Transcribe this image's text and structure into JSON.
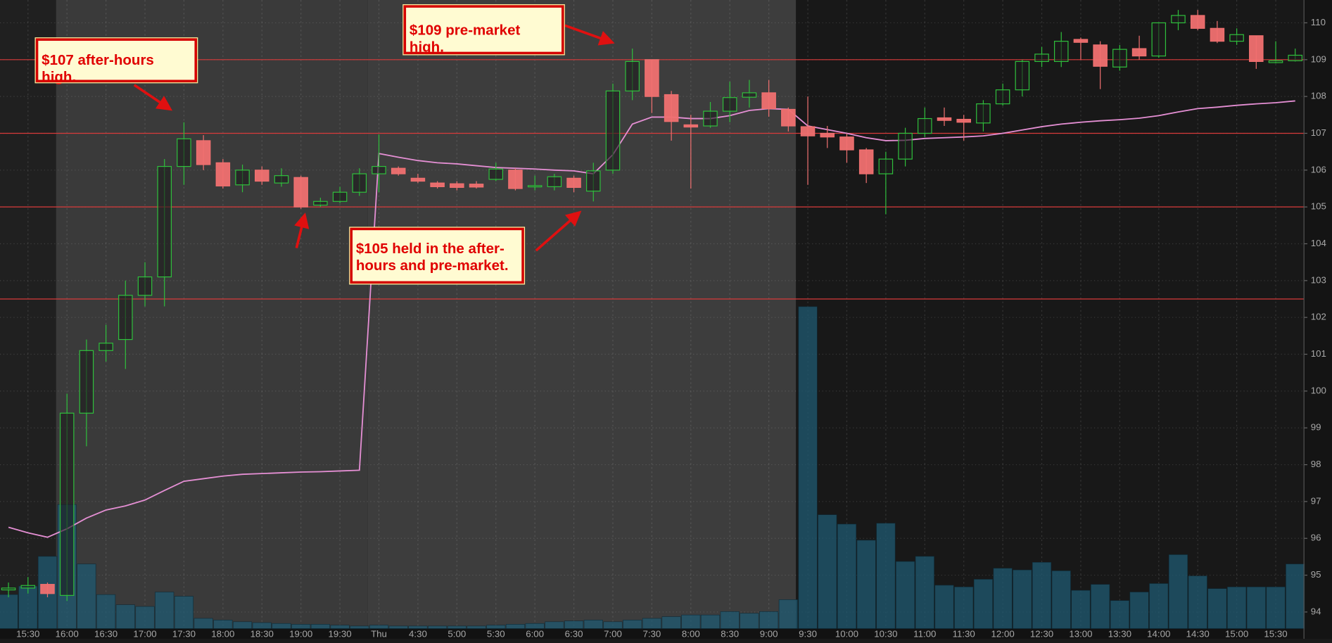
{
  "chart_data": {
    "type": "candlestick",
    "categories": [
      null,
      "15:30",
      null,
      "16:00",
      null,
      "16:30",
      null,
      "17:00",
      null,
      "17:30",
      null,
      "18:00",
      null,
      "18:30",
      null,
      "19:00",
      null,
      "19:30",
      null,
      "Thu",
      null,
      "4:30",
      null,
      "5:00",
      null,
      "5:30",
      null,
      "6:00",
      null,
      "6:30",
      null,
      "7:00",
      null,
      "7:30",
      null,
      "8:00",
      null,
      "8:30",
      null,
      "9:00",
      null,
      "9:30",
      null,
      "10:00",
      null,
      "10:30",
      null,
      "11:00",
      null,
      "11:30",
      null,
      "12:00",
      null,
      "12:30",
      null,
      "13:00",
      null,
      "13:30",
      null,
      "14:00",
      null,
      "14:30",
      null,
      "15:00",
      null,
      "15:30",
      null
    ],
    "open": [
      94.6,
      94.65,
      94.75,
      94.45,
      99.4,
      101.1,
      101.4,
      102.6,
      103.1,
      106.1,
      106.8,
      106.2,
      105.6,
      106.0,
      105.65,
      105.8,
      105.05,
      105.15,
      105.4,
      105.9,
      106.05,
      105.78,
      105.65,
      105.63,
      105.62,
      105.75,
      106.0,
      105.55,
      105.55,
      105.78,
      105.43,
      106.0,
      108.15,
      109.0,
      108.05,
      107.23,
      107.2,
      107.6,
      107.98,
      108.1,
      107.65,
      107.18,
      107.0,
      106.9,
      106.55,
      105.9,
      106.3,
      107.0,
      107.42,
      107.38,
      107.28,
      107.8,
      108.18,
      108.95,
      108.95,
      109.55,
      109.4,
      108.8,
      109.3,
      109.1,
      110.0,
      110.2,
      109.85,
      109.5,
      109.65,
      108.92,
      108.97
    ],
    "high": [
      94.8,
      94.95,
      94.8,
      99.93,
      101.4,
      101.8,
      103.0,
      103.5,
      106.3,
      107.3,
      106.95,
      106.3,
      106.15,
      106.1,
      106.05,
      105.85,
      105.25,
      105.55,
      106.05,
      106.97,
      106.1,
      105.9,
      105.7,
      105.7,
      105.7,
      106.2,
      106.05,
      105.85,
      105.9,
      105.85,
      106.2,
      108.35,
      109.3,
      109.0,
      108.15,
      107.5,
      107.85,
      108.4,
      108.45,
      108.45,
      107.7,
      108.0,
      107.2,
      107.0,
      106.6,
      106.5,
      107.15,
      107.7,
      107.7,
      107.5,
      107.9,
      108.35,
      109.0,
      109.35,
      109.75,
      109.6,
      109.5,
      109.4,
      109.65,
      110.0,
      110.35,
      110.35,
      110.05,
      109.85,
      109.65,
      109.5,
      109.3
    ],
    "low": [
      94.4,
      94.5,
      94.4,
      94.3,
      98.5,
      100.8,
      100.6,
      102.3,
      102.3,
      105.6,
      106.0,
      105.5,
      105.4,
      105.6,
      105.55,
      104.95,
      105.0,
      105.1,
      105.3,
      105.4,
      105.85,
      105.65,
      105.5,
      105.45,
      105.5,
      105.7,
      105.45,
      105.45,
      105.45,
      105.4,
      105.15,
      105.9,
      107.9,
      107.55,
      106.8,
      105.5,
      107.15,
      107.3,
      107.7,
      107.45,
      107.05,
      105.6,
      106.6,
      106.2,
      105.65,
      104.8,
      106.1,
      106.9,
      107.2,
      106.8,
      107.05,
      107.75,
      108.0,
      108.8,
      108.8,
      109.0,
      108.2,
      108.7,
      109.0,
      109.05,
      109.8,
      109.8,
      109.45,
      109.4,
      108.75,
      108.9,
      108.95
    ],
    "close": [
      94.65,
      94.72,
      94.5,
      99.4,
      101.1,
      101.3,
      102.6,
      103.1,
      106.1,
      106.85,
      106.15,
      105.57,
      106.0,
      105.7,
      105.85,
      105.0,
      105.15,
      105.4,
      105.9,
      106.1,
      105.9,
      105.7,
      105.55,
      105.53,
      105.54,
      106.03,
      105.5,
      105.58,
      105.82,
      105.53,
      105.98,
      108.15,
      108.95,
      108.0,
      107.32,
      107.17,
      107.6,
      107.97,
      108.1,
      107.67,
      107.2,
      106.93,
      106.9,
      106.55,
      105.9,
      106.3,
      107.0,
      107.4,
      107.35,
      107.3,
      107.8,
      108.18,
      108.95,
      109.15,
      109.5,
      109.47,
      108.82,
      109.28,
      109.1,
      110.0,
      110.2,
      109.85,
      109.5,
      109.68,
      108.95,
      108.97,
      109.12
    ],
    "volume": [
      40,
      50,
      85,
      146,
      76,
      40,
      28,
      26,
      43,
      38,
      12,
      10,
      8,
      7,
      6,
      5,
      5,
      4,
      3,
      4,
      3,
      3,
      3,
      3,
      3,
      4,
      5,
      6,
      8,
      9,
      10,
      8,
      10,
      12,
      14,
      16,
      16,
      20,
      18,
      20,
      34,
      379,
      134,
      123,
      104,
      124,
      79,
      85,
      51,
      49,
      58,
      71,
      69,
      78,
      68,
      45,
      52,
      33,
      43,
      53,
      87,
      62,
      47,
      49,
      49,
      49,
      76
    ],
    "vwap": [
      96.3,
      96.15,
      96.03,
      96.26,
      96.55,
      96.77,
      96.88,
      97.04,
      97.3,
      97.55,
      97.62,
      97.69,
      97.74,
      97.76,
      97.78,
      97.8,
      97.81,
      97.83,
      97.85,
      106.45,
      106.35,
      106.26,
      106.2,
      106.17,
      106.12,
      106.07,
      106.05,
      106.03,
      106.0,
      105.98,
      105.9,
      106.42,
      107.25,
      107.44,
      107.44,
      107.4,
      107.4,
      107.48,
      107.62,
      107.67,
      107.65,
      107.2,
      107.1,
      107.0,
      106.88,
      106.8,
      106.81,
      106.86,
      106.88,
      106.9,
      106.93,
      107.0,
      107.09,
      107.18,
      107.25,
      107.3,
      107.34,
      107.37,
      107.41,
      107.48,
      107.58,
      107.67,
      107.71,
      107.76,
      107.8,
      107.83,
      107.88
    ],
    "up_color": "#2fbf3c",
    "down_color": "#f07070",
    "vwap_color": "#e58fd4",
    "volume_color": "#1f5a72",
    "levels": [
      109,
      107,
      105,
      102.5
    ],
    "level_color": "#d83a3a",
    "ylim": [
      93.55,
      110.62
    ],
    "yticks": [
      94,
      95,
      96,
      97,
      98,
      99,
      100,
      101,
      102,
      103,
      104,
      105,
      106,
      107,
      108,
      109,
      110
    ],
    "grid": true,
    "annotations": [
      "$107 after-hours high.",
      "$109 pre-market high.",
      "$105 held in the after-hours and pre-market."
    ]
  }
}
